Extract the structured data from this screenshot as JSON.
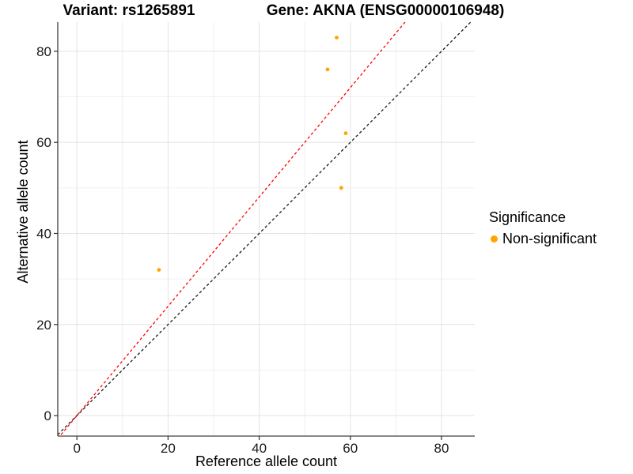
{
  "chart_data": {
    "type": "scatter",
    "titles": [
      "Variant: rs1265891",
      "Gene: AKNA (ENSG00000106948)"
    ],
    "xlabel": "Reference allele count",
    "ylabel": "Alternative allele count",
    "xlim": [
      -4.2,
      87.3
    ],
    "ylim": [
      -4.5,
      86.4
    ],
    "x_ticks": [
      0,
      20,
      40,
      60,
      80
    ],
    "y_ticks": [
      0,
      20,
      40,
      60,
      80
    ],
    "x_minor": [
      10,
      30,
      50,
      70
    ],
    "y_minor": [
      10,
      30,
      50,
      70
    ],
    "grid": true,
    "series": [
      {
        "name": "Non-significant",
        "color": "#FFA500",
        "points": [
          [
            18,
            32
          ],
          [
            55,
            76
          ],
          [
            57,
            83
          ],
          [
            58,
            50
          ],
          [
            59,
            62
          ]
        ]
      }
    ],
    "lines": [
      {
        "name": "identity-line",
        "slope": 1.0,
        "intercept": 0,
        "color": "#1A1A1A",
        "style": "dashed"
      },
      {
        "name": "allelic-ratio-line",
        "slope": 1.2,
        "intercept": 0,
        "color": "#FF0000",
        "style": "dashed"
      }
    ],
    "legend": {
      "title": "Significance",
      "position": "right",
      "items": [
        {
          "label": "Non-significant",
          "color": "#FFA500",
          "marker": "circle"
        }
      ]
    },
    "colors": {
      "major_grid": "#E3E3E3",
      "minor_grid": "#F0F0F0",
      "axis_line": "#404040",
      "tick_label": "#1A1A1A",
      "background": "#FFFFFF"
    }
  }
}
